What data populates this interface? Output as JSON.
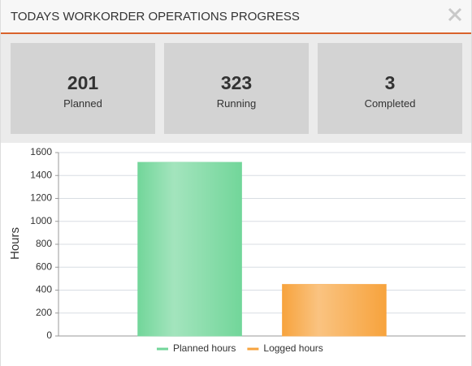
{
  "header": {
    "title": "TODAYS WORKORDER OPERATIONS PROGRESS"
  },
  "stats": [
    {
      "value": 201,
      "label": "Planned"
    },
    {
      "value": 323,
      "label": "Running"
    },
    {
      "value": 3,
      "label": "Completed"
    }
  ],
  "chart_data": {
    "type": "bar",
    "y_label": "Hours",
    "categories": [
      null
    ],
    "series": [
      {
        "name": "Planned hours",
        "color": "#72d69a",
        "values": [
          1515
        ]
      },
      {
        "name": "Logged hours",
        "color": "#f7a33d",
        "values": [
          450
        ]
      }
    ],
    "ylim": [
      0,
      1600
    ],
    "yticks": [
      0,
      200,
      400,
      600,
      800,
      1000,
      1200,
      1400,
      1600
    ],
    "grid": true,
    "legend": "bottom"
  }
}
